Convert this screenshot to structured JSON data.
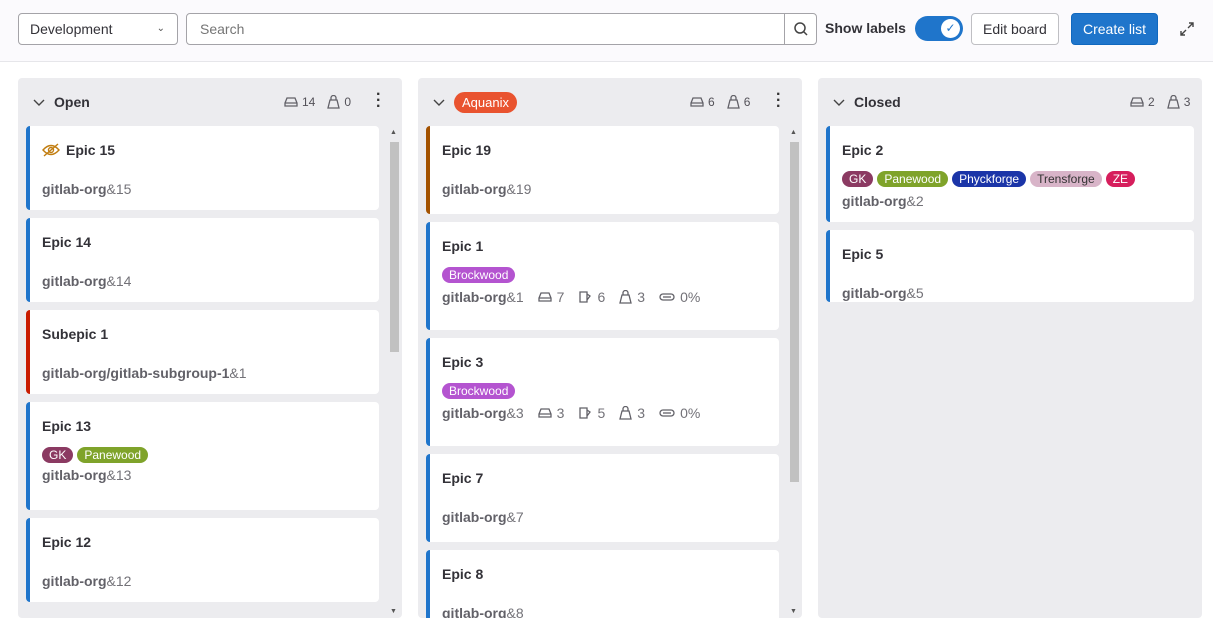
{
  "toolbar": {
    "board_select": "Development",
    "search_placeholder": "Search",
    "show_labels": "Show labels",
    "show_labels_on": true,
    "edit_board": "Edit board",
    "create_list": "Create list"
  },
  "colors": {
    "accent": "#1f75cb",
    "aquanix": "#e9532f"
  },
  "lists": [
    {
      "title": "Open",
      "epics": "14",
      "weight": "0",
      "cards": [
        {
          "title": "Epic 15",
          "ref_group": "gitlab-org",
          "ref_id": "&15",
          "hidden": true
        },
        {
          "title": "Epic 14",
          "ref_group": "gitlab-org",
          "ref_id": "&14"
        },
        {
          "title": "Subepic 1",
          "ref_group": "gitlab-org/gitlab-subgroup-1",
          "ref_id": "&1"
        },
        {
          "title": "Epic 13",
          "ref_group": "gitlab-org",
          "ref_id": "&13",
          "labels": [
            {
              "name": "GK",
              "color": "#8b3a62"
            },
            {
              "name": "Panewood",
              "color": "#7fa32a"
            }
          ]
        },
        {
          "title": "Epic 12",
          "ref_group": "gitlab-org",
          "ref_id": "&12"
        }
      ]
    },
    {
      "title": "Aquanix",
      "epics": "6",
      "weight": "6",
      "cards": [
        {
          "title": "Epic 19",
          "ref_group": "gitlab-org",
          "ref_id": "&19"
        },
        {
          "title": "Epic 1",
          "ref_group": "gitlab-org",
          "ref_id": "&1",
          "labels": [
            {
              "name": "Brockwood",
              "color": "#b454d0"
            }
          ],
          "epics": "7",
          "issues": "6",
          "weight": "3",
          "progress": "0%"
        },
        {
          "title": "Epic 3",
          "ref_group": "gitlab-org",
          "ref_id": "&3",
          "labels": [
            {
              "name": "Brockwood",
              "color": "#b454d0"
            }
          ],
          "epics": "3",
          "issues": "5",
          "weight": "3",
          "progress": "0%"
        },
        {
          "title": "Epic 7",
          "ref_group": "gitlab-org",
          "ref_id": "&7"
        },
        {
          "title": "Epic 8",
          "ref_group": "gitlab-org",
          "ref_id": "&8"
        }
      ]
    },
    {
      "title": "Closed",
      "epics": "2",
      "weight": "3",
      "cards": [
        {
          "title": "Epic 2",
          "ref_group": "gitlab-org",
          "ref_id": "&2",
          "labels": [
            {
              "name": "GK",
              "color": "#8b3a62"
            },
            {
              "name": "Panewood",
              "color": "#7fa32a"
            },
            {
              "name": "Phyckforge",
              "color": "#1b35a8"
            },
            {
              "name": "Trensforge",
              "color": "#d8b4c8",
              "dark": true
            },
            {
              "name": "ZE",
              "color": "#d61e5c"
            }
          ]
        },
        {
          "title": "Epic 5",
          "ref_group": "gitlab-org",
          "ref_id": "&5"
        }
      ]
    }
  ]
}
